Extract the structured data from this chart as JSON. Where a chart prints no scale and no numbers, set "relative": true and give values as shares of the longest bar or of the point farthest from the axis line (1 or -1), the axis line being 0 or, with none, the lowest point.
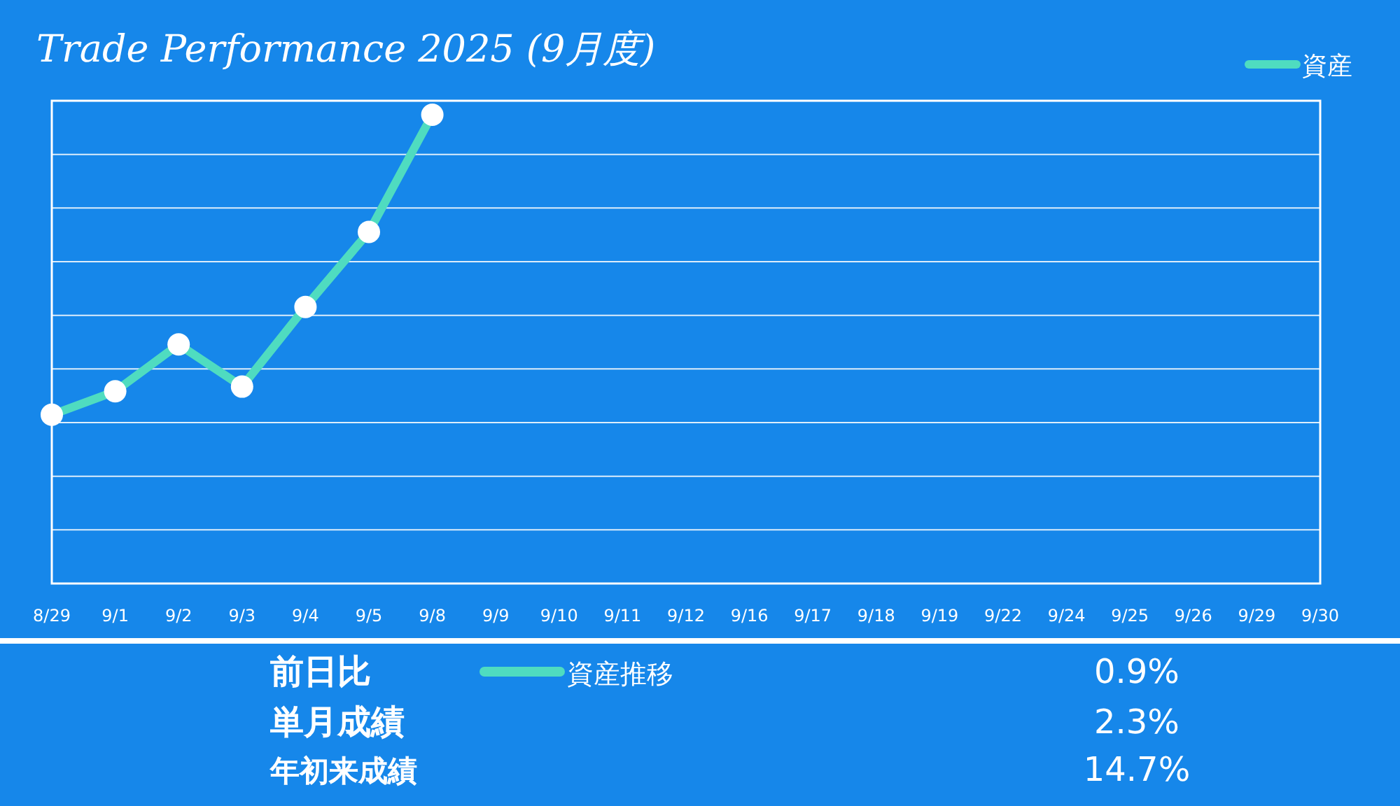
{
  "chart_data": [
    {
      "type": "line",
      "title": "Trade Performance 2025 (9月度)",
      "relative": true,
      "grid": true,
      "legend": "top right",
      "marker": "circle",
      "line_style": "solid",
      "categories": [
        "8/29",
        "9/1",
        "9/2",
        "9/3",
        "9/4",
        "9/5",
        "9/8",
        "9/9",
        "9/10",
        "9/11",
        "9/12",
        "9/16",
        "9/17",
        "9/18",
        "9/19",
        "9/22",
        "9/24",
        "9/25",
        "9/26",
        "9/29",
        "9/30"
      ],
      "series": [
        {
          "name": "資産",
          "color": "#4fdcc0",
          "values": [
            0.36,
            0.41,
            0.51,
            0.42,
            0.59,
            0.75,
            1,
            null,
            null,
            null,
            null,
            null,
            null,
            null,
            null,
            null,
            null,
            null,
            null,
            null,
            null
          ]
        }
      ]
    },
    {
      "type": "other",
      "annotations": [
        "前日比",
        "資産推移",
        "0.9%",
        "単月成績",
        "2.3%",
        "年初来成績",
        "14.7%"
      ]
    }
  ]
}
